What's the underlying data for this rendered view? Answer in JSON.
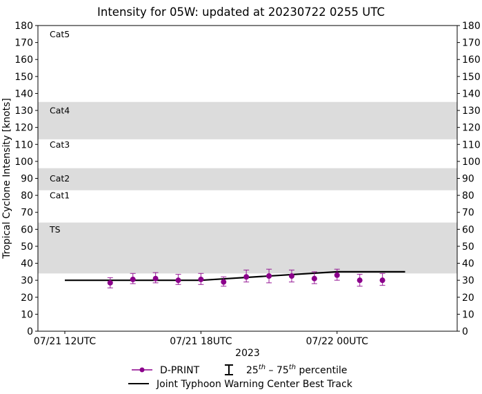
{
  "chart_data": {
    "type": "line",
    "title": "Intensity for 05W: updated at 20230722 0255 UTC",
    "xlabel": "2023",
    "ylabel": "Tropical Cyclone Intensity [knots]",
    "ylim": [
      0,
      180
    ],
    "yticks": [
      0,
      10,
      20,
      30,
      40,
      50,
      60,
      70,
      80,
      90,
      100,
      110,
      120,
      130,
      140,
      150,
      160,
      170,
      180
    ],
    "xlim_hours_from_0721_12UTC": [
      -1.2,
      17.3
    ],
    "xticks": [
      {
        "label": "07/21 12UTC",
        "hour": 0
      },
      {
        "label": "07/21 18UTC",
        "hour": 6
      },
      {
        "label": "07/22 00UTC",
        "hour": 12
      }
    ],
    "grid": false,
    "legend_position": "below",
    "category_bands": [
      {
        "label": "Cat5",
        "lo": 137,
        "hi": 180,
        "shaded": false,
        "label_y": 175
      },
      {
        "label": "Cat4",
        "lo": 113,
        "hi": 135,
        "shaded": true,
        "label_y": 130
      },
      {
        "label": "Cat3",
        "lo": 96,
        "hi": 113,
        "shaded": false,
        "label_y": 110
      },
      {
        "label": "Cat2",
        "lo": 83,
        "hi": 96,
        "shaded": true,
        "label_y": 90
      },
      {
        "label": "Cat1",
        "lo": 64,
        "hi": 83,
        "shaded": false,
        "label_y": 80
      },
      {
        "label": "TS",
        "lo": 34,
        "hi": 64,
        "shaded": true,
        "label_y": 60
      }
    ],
    "series": [
      {
        "name": "D-PRINT",
        "color": "#8b008b",
        "style": "markers-with-errorbars",
        "x_hours": [
          2,
          3,
          4,
          5,
          6,
          7,
          8,
          9,
          10,
          11,
          12,
          13,
          14
        ],
        "values": [
          28.5,
          30.5,
          31,
          30,
          30.5,
          29,
          32,
          32.5,
          32.5,
          31,
          33,
          30,
          30
        ],
        "p25": [
          25.5,
          28,
          28.5,
          27.5,
          27.5,
          26.5,
          29,
          28.5,
          29,
          28,
          30,
          26.5,
          27
        ],
        "p75": [
          31.5,
          34,
          34.5,
          33.5,
          34,
          32,
          36,
          36.5,
          36,
          35,
          36.5,
          33.5,
          34
        ]
      },
      {
        "name": "Joint Typhoon Warning Center Best Track",
        "color": "#000000",
        "style": "line",
        "x_hours": [
          0,
          6,
          12,
          15
        ],
        "values": [
          30,
          30,
          35,
          35
        ]
      }
    ]
  },
  "legend": {
    "dprint": "D-PRINT",
    "percentile_prefix": "25",
    "percentile_sup1": "th",
    "percentile_mid": " – 75",
    "percentile_sup2": "th",
    "percentile_suffix": " percentile",
    "best_track": "Joint Typhoon Warning Center Best Track"
  },
  "colors": {
    "band": "#dcdcdc",
    "dprint": "#8b008b",
    "best_track": "#000000",
    "axis": "#000000"
  }
}
